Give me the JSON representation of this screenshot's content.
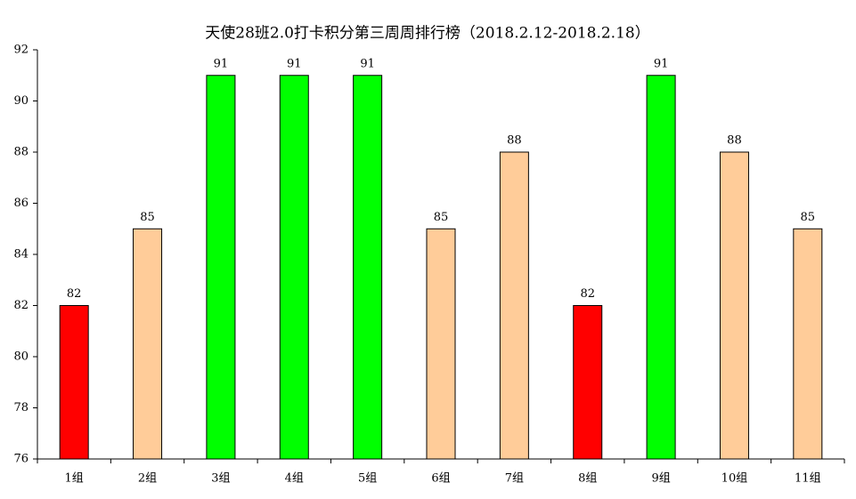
{
  "chart_data": {
    "type": "bar",
    "title": "天使28班2.0打卡积分第三周周排行榜（2018.2.12-2018.2.18）",
    "categories": [
      "1组",
      "2组",
      "3组",
      "4组",
      "5组",
      "6组",
      "7组",
      "8组",
      "9组",
      "10组",
      "11组"
    ],
    "values": [
      82,
      85,
      91,
      91,
      91,
      85,
      88,
      82,
      91,
      88,
      85
    ],
    "colors": [
      "#ff0000",
      "#ffcc99",
      "#00ff00",
      "#00ff00",
      "#00ff00",
      "#ffcc99",
      "#ffcc99",
      "#ff0000",
      "#00ff00",
      "#ffcc99",
      "#ffcc99"
    ],
    "ylim": [
      76,
      92
    ],
    "yticks": [
      76,
      78,
      80,
      82,
      84,
      86,
      88,
      90,
      92
    ],
    "grid": false
  }
}
